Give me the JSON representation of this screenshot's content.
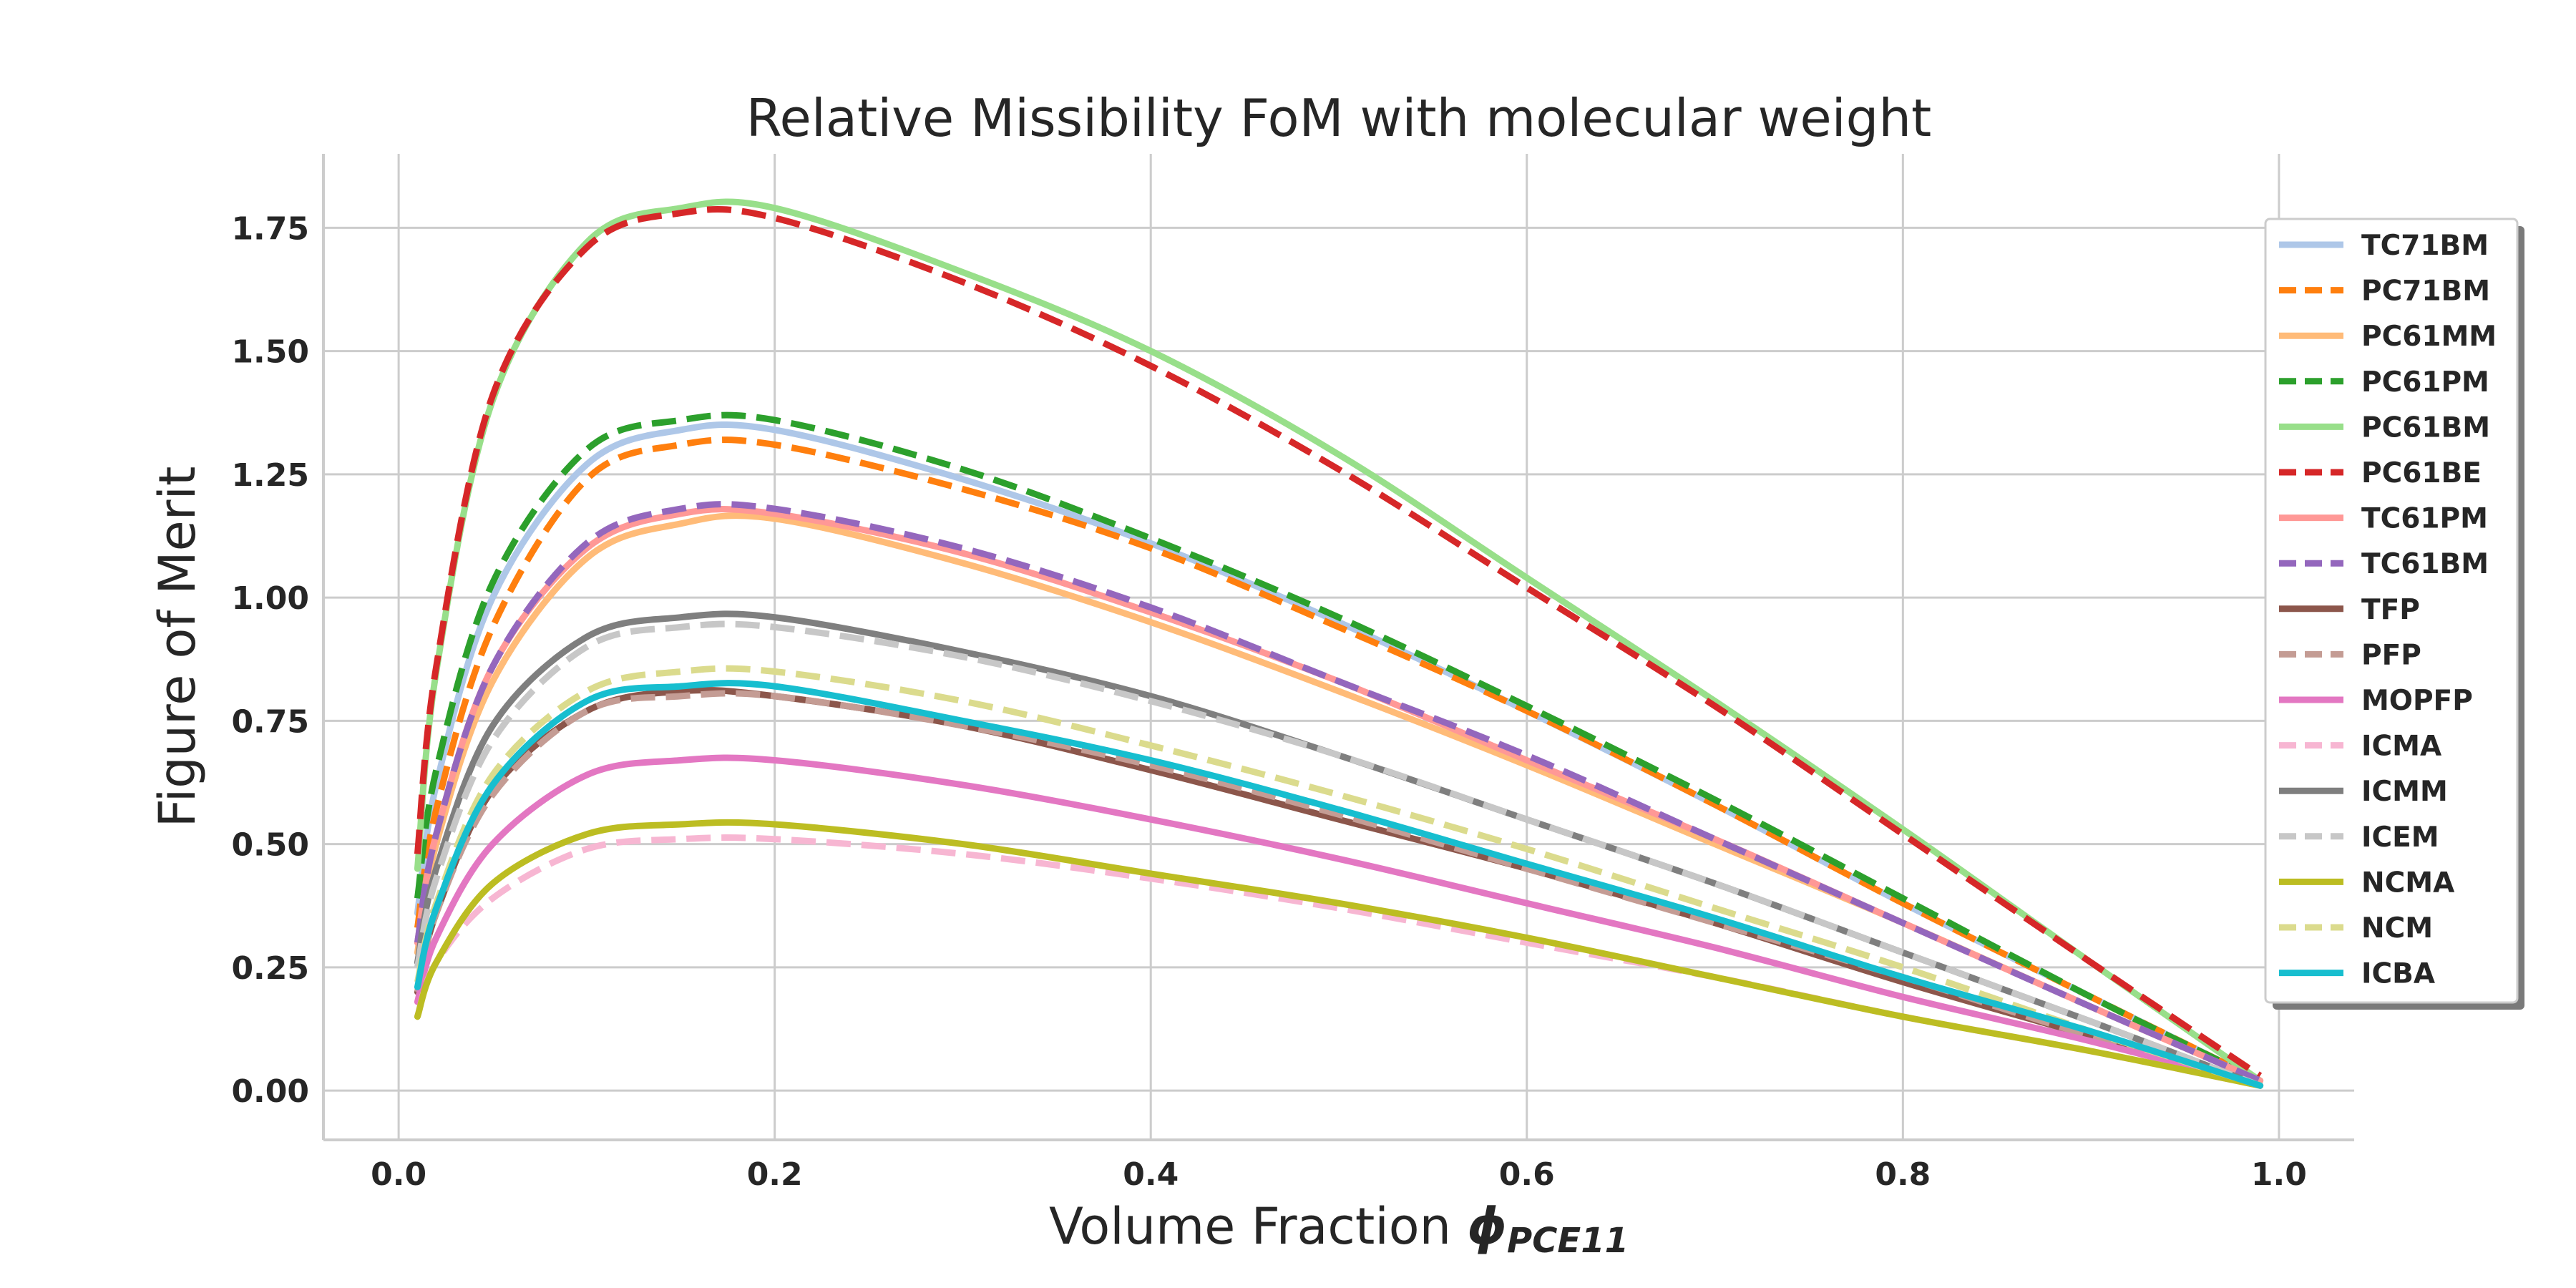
{
  "chart_data": {
    "type": "line",
    "title": "Relative Missibility FoM with molecular weight",
    "xlabel": "Volume Fraction",
    "xlabel_symbol": "ϕ",
    "xlabel_subscript": "PCE11",
    "ylabel": "Figure of Merit",
    "xlim": [
      -0.04,
      1.04
    ],
    "ylim": [
      -0.1,
      1.9
    ],
    "xticks": [
      0.0,
      0.2,
      0.4,
      0.6,
      0.8,
      1.0
    ],
    "xtick_labels": [
      "0.0",
      "0.2",
      "0.4",
      "0.6",
      "0.8",
      "1.0"
    ],
    "yticks": [
      0.0,
      0.25,
      0.5,
      0.75,
      1.0,
      1.25,
      1.5,
      1.75
    ],
    "ytick_labels": [
      "0.00",
      "0.25",
      "0.50",
      "0.75",
      "1.00",
      "1.25",
      "1.50",
      "1.75"
    ],
    "grid": true,
    "legend_position": "right",
    "x": [
      0.01,
      0.02,
      0.05,
      0.1,
      0.15,
      0.2,
      0.3,
      0.4,
      0.5,
      0.6,
      0.7,
      0.8,
      0.9,
      0.99
    ],
    "series": [
      {
        "name": "TC71BM",
        "color": "#aec7e8",
        "dash": "solid",
        "values": [
          0.36,
          0.62,
          1.0,
          1.27,
          1.34,
          1.34,
          1.24,
          1.11,
          0.95,
          0.77,
          0.58,
          0.38,
          0.19,
          0.02
        ]
      },
      {
        "name": "PC71BM",
        "color": "#ff7f0e",
        "dash": "dashed",
        "values": [
          0.33,
          0.57,
          0.94,
          1.24,
          1.31,
          1.31,
          1.22,
          1.1,
          0.94,
          0.77,
          0.58,
          0.38,
          0.19,
          0.02
        ]
      },
      {
        "name": "PC61MM",
        "color": "#ffbb78",
        "dash": "solid",
        "values": [
          0.28,
          0.5,
          0.83,
          1.08,
          1.15,
          1.16,
          1.07,
          0.95,
          0.81,
          0.66,
          0.5,
          0.34,
          0.17,
          0.02
        ]
      },
      {
        "name": "PC61PM",
        "color": "#2ca02c",
        "dash": "dashed",
        "values": [
          0.39,
          0.65,
          1.03,
          1.3,
          1.36,
          1.36,
          1.26,
          1.12,
          0.96,
          0.78,
          0.59,
          0.39,
          0.19,
          0.02
        ]
      },
      {
        "name": "PC61BM",
        "color": "#98df8a",
        "dash": "solid",
        "values": [
          0.45,
          0.85,
          1.4,
          1.72,
          1.79,
          1.79,
          1.66,
          1.5,
          1.29,
          1.04,
          0.79,
          0.53,
          0.26,
          0.02
        ]
      },
      {
        "name": "PC61BE",
        "color": "#d62728",
        "dash": "dashed",
        "values": [
          0.48,
          0.86,
          1.41,
          1.71,
          1.78,
          1.77,
          1.64,
          1.47,
          1.26,
          1.02,
          0.78,
          0.52,
          0.26,
          0.03
        ]
      },
      {
        "name": "TC61PM",
        "color": "#ff9896",
        "dash": "solid",
        "values": [
          0.3,
          0.52,
          0.86,
          1.1,
          1.17,
          1.17,
          1.09,
          0.97,
          0.83,
          0.67,
          0.51,
          0.34,
          0.17,
          0.02
        ]
      },
      {
        "name": "TC61BM",
        "color": "#9467bd",
        "dash": "dashed",
        "values": [
          0.3,
          0.52,
          0.86,
          1.11,
          1.18,
          1.18,
          1.1,
          0.98,
          0.83,
          0.68,
          0.51,
          0.34,
          0.17,
          0.02
        ]
      },
      {
        "name": "TFP",
        "color": "#8c564b",
        "dash": "solid",
        "values": [
          0.2,
          0.36,
          0.61,
          0.77,
          0.81,
          0.8,
          0.74,
          0.65,
          0.55,
          0.45,
          0.34,
          0.22,
          0.11,
          0.01
        ]
      },
      {
        "name": "PFP",
        "color": "#c49c94",
        "dash": "dashed",
        "values": [
          0.2,
          0.36,
          0.6,
          0.77,
          0.8,
          0.8,
          0.74,
          0.66,
          0.56,
          0.45,
          0.34,
          0.23,
          0.11,
          0.01
        ]
      },
      {
        "name": "MOPFP",
        "color": "#e377c2",
        "dash": "solid",
        "values": [
          0.18,
          0.31,
          0.5,
          0.64,
          0.67,
          0.67,
          0.62,
          0.55,
          0.47,
          0.38,
          0.29,
          0.19,
          0.1,
          0.01
        ]
      },
      {
        "name": "ICMA",
        "color": "#f7b6d2",
        "dash": "dashed",
        "values": [
          0.15,
          0.26,
          0.39,
          0.49,
          0.51,
          0.51,
          0.48,
          0.43,
          0.37,
          0.3,
          0.23,
          0.15,
          0.08,
          0.01
        ]
      },
      {
        "name": "ICMM",
        "color": "#7f7f7f",
        "dash": "solid",
        "values": [
          0.26,
          0.45,
          0.74,
          0.92,
          0.96,
          0.96,
          0.89,
          0.8,
          0.68,
          0.55,
          0.42,
          0.28,
          0.14,
          0.01
        ]
      },
      {
        "name": "ICEM",
        "color": "#c7c7c7",
        "dash": "dashed",
        "values": [
          0.25,
          0.43,
          0.71,
          0.9,
          0.94,
          0.94,
          0.88,
          0.79,
          0.68,
          0.55,
          0.42,
          0.28,
          0.14,
          0.01
        ]
      },
      {
        "name": "NCMA",
        "color": "#bcbd22",
        "dash": "solid",
        "values": [
          0.15,
          0.26,
          0.42,
          0.52,
          0.54,
          0.54,
          0.5,
          0.44,
          0.38,
          0.31,
          0.23,
          0.15,
          0.08,
          0.01
        ]
      },
      {
        "name": "NCM",
        "color": "#dbdb8d",
        "dash": "dashed",
        "values": [
          0.22,
          0.38,
          0.64,
          0.81,
          0.85,
          0.85,
          0.79,
          0.7,
          0.6,
          0.49,
          0.37,
          0.25,
          0.12,
          0.01
        ]
      },
      {
        "name": "ICBA",
        "color": "#17becf",
        "dash": "solid",
        "values": [
          0.21,
          0.37,
          0.62,
          0.79,
          0.82,
          0.82,
          0.75,
          0.67,
          0.57,
          0.46,
          0.35,
          0.23,
          0.12,
          0.01
        ]
      }
    ]
  }
}
